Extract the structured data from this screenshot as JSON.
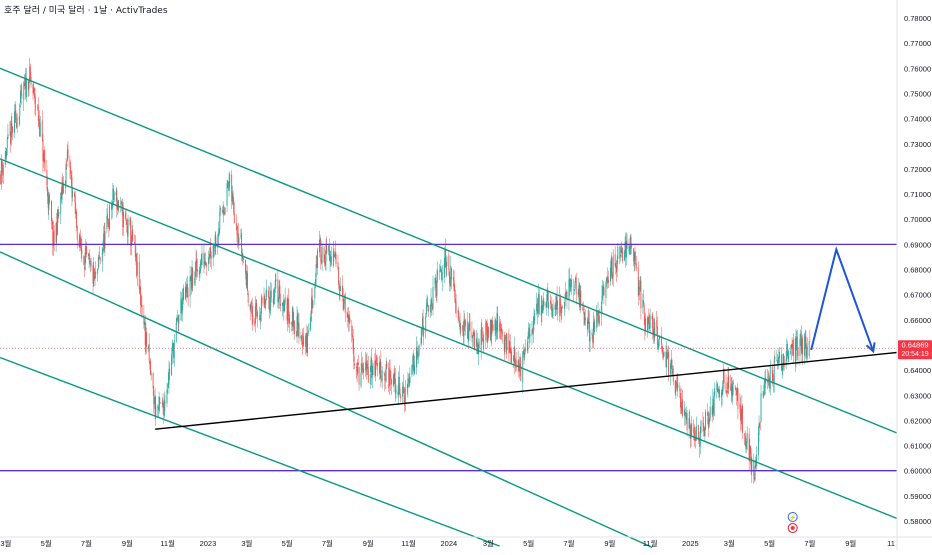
{
  "header": {
    "symbol_title": "호주 달러 / 미국 달러 · 1날 · ActivTrades"
  },
  "price_badge": {
    "price": "0.64869",
    "countdown": "20:54:19"
  },
  "colors": {
    "up": "#26a69a",
    "down": "#ef5350",
    "channel": "#089981",
    "horizontal": "#5b2bd6",
    "support": "#000000",
    "projection": "#1e55d6",
    "badge": "#f23645",
    "axis_text": "#131722"
  },
  "chart_data": {
    "type": "candlestick",
    "y_axis": {
      "min": 0.575,
      "max": 0.785,
      "ticks": [
        "0.78000",
        "0.77000",
        "0.76000",
        "0.75000",
        "0.74000",
        "0.73000",
        "0.72000",
        "0.71000",
        "0.70000",
        "0.69000",
        "0.68000",
        "0.67000",
        "0.66000",
        "0.65000",
        "0.64000",
        "0.63000",
        "0.62000",
        "0.61000",
        "0.60000",
        "0.59000",
        "0.58000"
      ]
    },
    "x_axis": {
      "start": "2022-02-20",
      "end": "2025-11-10",
      "ticks": [
        {
          "date": "2022-03-01",
          "label": "3월"
        },
        {
          "date": "2022-05-01",
          "label": "5월"
        },
        {
          "date": "2022-07-01",
          "label": "7월"
        },
        {
          "date": "2022-09-01",
          "label": "9월"
        },
        {
          "date": "2022-11-01",
          "label": "11월"
        },
        {
          "date": "2023-01-01",
          "label": "2023"
        },
        {
          "date": "2023-03-01",
          "label": "3월"
        },
        {
          "date": "2023-05-01",
          "label": "5월"
        },
        {
          "date": "2023-07-01",
          "label": "7월"
        },
        {
          "date": "2023-09-01",
          "label": "9월"
        },
        {
          "date": "2023-11-01",
          "label": "11월"
        },
        {
          "date": "2024-01-01",
          "label": "2024"
        },
        {
          "date": "2024-03-01",
          "label": "3월"
        },
        {
          "date": "2024-05-01",
          "label": "5월"
        },
        {
          "date": "2024-07-01",
          "label": "7월"
        },
        {
          "date": "2024-09-01",
          "label": "9월"
        },
        {
          "date": "2024-11-01",
          "label": "11월"
        },
        {
          "date": "2025-01-01",
          "label": "2025"
        },
        {
          "date": "2025-03-01",
          "label": "3월"
        },
        {
          "date": "2025-05-01",
          "label": "5월"
        },
        {
          "date": "2025-07-01",
          "label": "7월"
        },
        {
          "date": "2025-09-01",
          "label": "9월"
        },
        {
          "date": "2025-11-01",
          "label": "11"
        }
      ]
    },
    "price_path": [
      [
        "2022-02-20",
        0.718
      ],
      [
        "2022-03-10",
        0.735
      ],
      [
        "2022-04-05",
        0.757
      ],
      [
        "2022-04-20",
        0.74
      ],
      [
        "2022-05-12",
        0.69
      ],
      [
        "2022-06-03",
        0.725
      ],
      [
        "2022-06-20",
        0.69
      ],
      [
        "2022-07-14",
        0.675
      ],
      [
        "2022-08-12",
        0.71
      ],
      [
        "2022-09-10",
        0.69
      ],
      [
        "2022-10-13",
        0.625
      ],
      [
        "2022-10-25",
        0.625
      ],
      [
        "2022-11-20",
        0.665
      ],
      [
        "2022-12-15",
        0.68
      ],
      [
        "2023-01-10",
        0.69
      ],
      [
        "2023-02-02",
        0.714
      ],
      [
        "2023-02-20",
        0.69
      ],
      [
        "2023-03-10",
        0.66
      ],
      [
        "2023-04-14",
        0.672
      ],
      [
        "2023-05-31",
        0.65
      ],
      [
        "2023-06-17",
        0.688
      ],
      [
        "2023-07-14",
        0.683
      ],
      [
        "2023-08-17",
        0.638
      ],
      [
        "2023-09-15",
        0.642
      ],
      [
        "2023-10-26",
        0.63
      ],
      [
        "2023-11-20",
        0.655
      ],
      [
        "2023-12-28",
        0.685
      ],
      [
        "2024-01-20",
        0.658
      ],
      [
        "2024-02-15",
        0.65
      ],
      [
        "2024-03-10",
        0.66
      ],
      [
        "2024-04-19",
        0.64
      ],
      [
        "2024-05-16",
        0.667
      ],
      [
        "2024-06-20",
        0.666
      ],
      [
        "2024-07-08",
        0.675
      ],
      [
        "2024-08-05",
        0.653
      ],
      [
        "2024-08-30",
        0.678
      ],
      [
        "2024-09-30",
        0.692
      ],
      [
        "2024-10-25",
        0.66
      ],
      [
        "2024-11-20",
        0.65
      ],
      [
        "2024-12-25",
        0.62
      ],
      [
        "2025-01-13",
        0.613
      ],
      [
        "2025-02-20",
        0.637
      ],
      [
        "2025-03-15",
        0.628
      ],
      [
        "2025-04-08",
        0.596
      ],
      [
        "2025-04-20",
        0.632
      ],
      [
        "2025-05-20",
        0.645
      ],
      [
        "2025-06-20",
        0.65
      ],
      [
        "2025-07-01",
        0.6487
      ]
    ],
    "drawings": {
      "horizontal_lines": [
        0.69,
        0.6
      ],
      "channel_lines": [
        {
          "from": [
            "2022-02-20",
            0.76
          ],
          "to": [
            "2025-11-10",
            0.615
          ]
        },
        {
          "from": [
            "2022-02-20",
            0.724
          ],
          "to": [
            "2025-11-10",
            0.581
          ]
        },
        {
          "from": [
            "2022-02-20",
            0.687
          ],
          "to": [
            "2024-11-04",
            0.5695
          ]
        },
        {
          "from": [
            "2022-02-20",
            0.645
          ],
          "to": [
            "2024-03-18",
            0.57
          ]
        }
      ],
      "support_line": {
        "from": [
          "2022-10-13",
          0.6165
        ],
        "to": [
          "2025-11-10",
          0.647
        ]
      },
      "projection": [
        [
          "2025-07-03",
          0.648
        ],
        [
          "2025-08-10",
          0.688
        ],
        [
          "2025-10-05",
          0.6475
        ]
      ]
    }
  }
}
